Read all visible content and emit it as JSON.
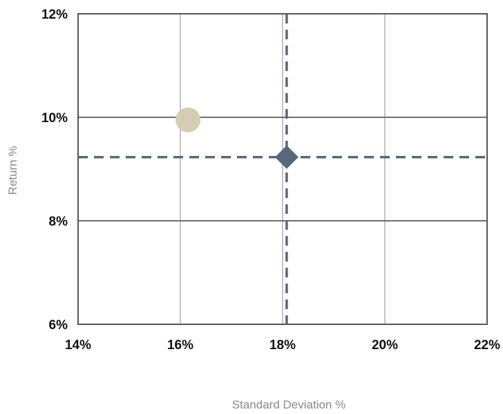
{
  "chart_data": {
    "type": "scatter",
    "title": "",
    "xlabel": "Standard Deviation %",
    "ylabel": "Return %",
    "xlim": [
      14,
      22
    ],
    "ylim": [
      6,
      12
    ],
    "x_ticks": [
      14,
      16,
      18,
      20,
      22
    ],
    "y_ticks": [
      6,
      8,
      10,
      12
    ],
    "x_tick_labels": [
      "14%",
      "16%",
      "18%",
      "20%",
      "22%"
    ],
    "y_tick_labels": [
      "6%",
      "8%",
      "10%",
      "12%"
    ],
    "grid": true,
    "legend": "none",
    "points": [
      {
        "x": 16.15,
        "y": 9.95,
        "marker": "circle",
        "color": "#d6ccb4"
      },
      {
        "x": 18.08,
        "y": 9.23,
        "marker": "diamond",
        "color": "#56687a"
      }
    ],
    "reference_lines": [
      {
        "orientation": "vertical",
        "value": 18.08,
        "style": "dashed",
        "color": "#56687a"
      },
      {
        "orientation": "horizontal",
        "value": 9.23,
        "style": "dashed",
        "color": "#56687a"
      }
    ],
    "colors": {
      "gridline_vertical": "#c4c4c4",
      "gridline_horizontal": "#6e6e6e",
      "frame": "#555555"
    }
  }
}
